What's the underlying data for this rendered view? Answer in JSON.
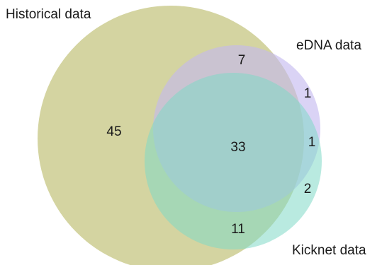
{
  "sets": {
    "historical": {
      "label": "Historical data",
      "color": "#c9c98a"
    },
    "edna": {
      "label": "eDNA data",
      "color": "#c3b8ef"
    },
    "kicknet": {
      "label": "Kicknet data",
      "color": "#7fd8c6"
    }
  },
  "regions": {
    "historical_only": "45",
    "historical_edna": "7",
    "edna_only": "1",
    "all_three": "33",
    "edna_kicknet": "1",
    "kicknet_only": "2",
    "historical_kicknet": "11"
  }
}
